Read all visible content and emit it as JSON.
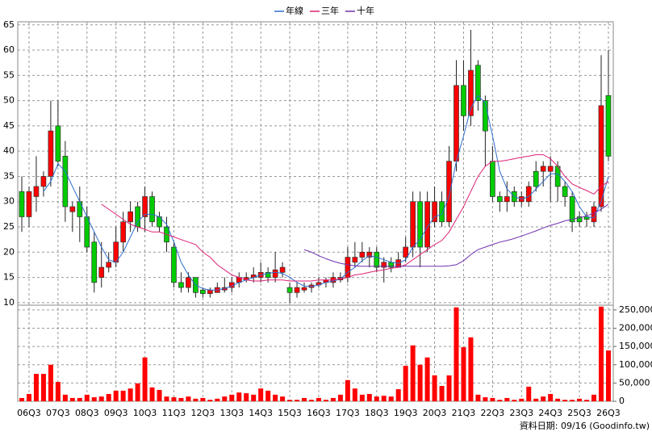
{
  "chart_data": {
    "type": "candlestick",
    "legend": "top",
    "grid": true,
    "categories": [
      null,
      "06Q3",
      null,
      null,
      null,
      "07Q3",
      null,
      null,
      null,
      "08Q3",
      null,
      null,
      null,
      "09Q3",
      null,
      null,
      null,
      "10Q3",
      null,
      null,
      null,
      "11Q3",
      null,
      null,
      null,
      "12Q3",
      null,
      null,
      null,
      "13Q3",
      null,
      null,
      null,
      "14Q3",
      null,
      null,
      null,
      "15Q3",
      null,
      null,
      null,
      "16Q3",
      null,
      null,
      null,
      "17Q3",
      null,
      null,
      null,
      "18Q3",
      null,
      null,
      null,
      "19Q3",
      null,
      null,
      null,
      "20Q3",
      null,
      null,
      null,
      "21Q3",
      null,
      null,
      null,
      "22Q3",
      null,
      null,
      null,
      "23Q3",
      null,
      null,
      null,
      "24Q3",
      null,
      null,
      null,
      "25Q3",
      null,
      null,
      null,
      "26Q3"
    ],
    "open": [
      32,
      27,
      31,
      33,
      35,
      45,
      39,
      28,
      30,
      27,
      22,
      15,
      17,
      18,
      22,
      26,
      29,
      27,
      31,
      27,
      25,
      21,
      14,
      13,
      15,
      12.5,
      11.8,
      12,
      12.5,
      13,
      14,
      14.5,
      15,
      15,
      16,
      15,
      16,
      13,
      12,
      12.5,
      13,
      13.5,
      14,
      14,
      14.5,
      15,
      18,
      19,
      19,
      20,
      17,
      18,
      17,
      19,
      21,
      30,
      21,
      26,
      30,
      26,
      38,
      53,
      47,
      57,
      50,
      38,
      31,
      30,
      32,
      30,
      30,
      36,
      36,
      36,
      37,
      33,
      31,
      27,
      27,
      26,
      29,
      51
    ],
    "high": [
      35,
      33,
      39,
      36,
      50,
      50,
      42,
      30,
      33,
      29,
      24,
      22,
      20,
      25,
      28,
      30,
      30,
      33,
      32,
      28,
      27,
      22,
      16,
      16,
      15,
      13,
      13,
      14,
      15,
      15,
      16,
      16,
      17,
      18,
      17,
      20,
      18,
      14,
      14,
      14,
      14,
      15,
      15,
      16,
      16,
      21,
      22,
      22,
      21,
      21,
      19,
      19,
      20,
      23,
      32,
      32,
      32,
      33,
      32,
      41,
      58,
      58,
      64,
      58,
      51,
      41,
      32,
      34,
      33,
      32,
      34,
      38,
      38,
      39,
      38,
      34,
      32,
      28,
      28,
      30,
      59,
      60
    ],
    "low": [
      24,
      25,
      28,
      31,
      33,
      37,
      26,
      24,
      22,
      20,
      12,
      13,
      16,
      17,
      20,
      24,
      24,
      24,
      25,
      24,
      20,
      13,
      12,
      12,
      11,
      11,
      11,
      12,
      12,
      12,
      13,
      14,
      14,
      14,
      14,
      14,
      15,
      10,
      11,
      12,
      12,
      13,
      13,
      13,
      14,
      14,
      17,
      18,
      17,
      16,
      14,
      16,
      17,
      18,
      19,
      17,
      20,
      25,
      25,
      25,
      36,
      44,
      45,
      48,
      37,
      30,
      28,
      28,
      29,
      29,
      29,
      32,
      33,
      30,
      30,
      29,
      24,
      25,
      25,
      25,
      28,
      38
    ],
    "close": [
      27,
      32,
      33,
      35,
      44,
      38,
      29,
      29,
      27,
      21,
      14,
      17,
      18,
      22,
      26,
      28,
      25,
      31,
      26,
      25,
      22,
      14,
      13,
      15,
      12,
      11.8,
      12.5,
      13,
      13,
      14,
      15,
      15,
      15.5,
      16,
      15,
      16.5,
      17,
      12,
      13,
      13,
      13.5,
      14,
      14.5,
      15,
      15,
      19,
      19,
      20,
      20,
      17,
      18,
      17,
      18.5,
      21,
      30,
      21,
      30,
      30,
      26,
      38,
      53,
      47,
      56,
      50,
      44,
      31,
      30,
      31,
      30,
      31,
      33,
      33,
      37,
      37,
      33,
      31,
      26,
      26,
      26.5,
      29,
      49,
      39
    ],
    "up_color": "#ff0000",
    "down_color": "#00cc00",
    "ylim": [
      9.5,
      65.6
    ],
    "yticks": [
      10,
      15,
      20,
      25,
      30,
      35,
      40,
      45,
      50,
      55,
      60,
      65
    ],
    "series": [
      {
        "name": "年線",
        "color": "#2f6fd0",
        "values": [
          null,
          null,
          null,
          32,
          34,
          37.5,
          36,
          33,
          30,
          27,
          24,
          21,
          18.5,
          18,
          20,
          23,
          26,
          27.5,
          27.5,
          27,
          25.5,
          22,
          18,
          15.5,
          13.5,
          12.8,
          12.5,
          12.5,
          12.8,
          13.3,
          14,
          14.5,
          15,
          15.5,
          15.8,
          16,
          15.8,
          15,
          14,
          13.3,
          13.2,
          13.5,
          14,
          14.3,
          14.7,
          16,
          17,
          18.3,
          19.3,
          19,
          18.5,
          18,
          17.8,
          18.5,
          21,
          22.5,
          25,
          27,
          27.5,
          31,
          38,
          43,
          48.5,
          51,
          49.5,
          43,
          36,
          32.5,
          31,
          30.5,
          31,
          32.5,
          34,
          35.5,
          35.5,
          34,
          32,
          29,
          27,
          26.8,
          30,
          35
        ]
      },
      {
        "name": "三年",
        "color": "#dd2277",
        "values": [
          null,
          null,
          null,
          null,
          null,
          null,
          null,
          null,
          null,
          null,
          null,
          29.5,
          28.5,
          27.5,
          26.5,
          25.5,
          25,
          24.5,
          24,
          24,
          23.5,
          23,
          22.5,
          22,
          21.5,
          20,
          19,
          17.5,
          16.5,
          15.5,
          15,
          14.5,
          14.3,
          14.3,
          14.5,
          14.5,
          14.5,
          14.3,
          14.3,
          14.3,
          14.3,
          14.5,
          14.5,
          14.5,
          14.7,
          15,
          15.5,
          15.7,
          16,
          16.3,
          16.5,
          16.8,
          17,
          17.5,
          18.5,
          19.5,
          20.5,
          21.5,
          22.3,
          24,
          26.5,
          29,
          32,
          35,
          37,
          38,
          38,
          38.2,
          38.5,
          38.8,
          39,
          39.3,
          39.3,
          38.5,
          37,
          35,
          33.5,
          32.8,
          32.2,
          31.5,
          33,
          34
        ]
      },
      {
        "name": "十年",
        "color": "#7030b0",
        "values": [
          null,
          null,
          null,
          null,
          null,
          null,
          null,
          null,
          null,
          null,
          null,
          null,
          null,
          null,
          null,
          null,
          null,
          null,
          null,
          null,
          null,
          null,
          null,
          null,
          null,
          null,
          null,
          null,
          null,
          null,
          null,
          null,
          null,
          null,
          null,
          null,
          null,
          null,
          null,
          20.5,
          20,
          19.3,
          18.7,
          18.2,
          17.8,
          17.5,
          17.3,
          17.2,
          17.2,
          17.2,
          17.2,
          17.2,
          17.2,
          17.2,
          17.2,
          17.2,
          17.2,
          17.2,
          17.2,
          17.3,
          17.5,
          18.3,
          19.5,
          20.5,
          21,
          21.5,
          22,
          22.3,
          22.7,
          23.2,
          23.7,
          24.2,
          24.8,
          25.3,
          25.7,
          26.2,
          26.5,
          26.8,
          27.2,
          27.7,
          28.5,
          29.5
        ]
      }
    ],
    "volume": {
      "color": "#ff0000",
      "values": [
        9000,
        20000,
        75000,
        75000,
        100000,
        53000,
        18000,
        9000,
        9000,
        18000,
        11000,
        13000,
        20000,
        29000,
        29000,
        35000,
        49000,
        120000,
        38000,
        31000,
        13000,
        11000,
        9000,
        13000,
        7000,
        9000,
        4000,
        7000,
        13000,
        18000,
        24000,
        22000,
        18000,
        35000,
        29000,
        18000,
        13000,
        4000,
        4000,
        9000,
        4000,
        9000,
        4000,
        9000,
        18000,
        58000,
        35000,
        18000,
        20000,
        13000,
        15000,
        13000,
        33000,
        97000,
        153000,
        100000,
        120000,
        71000,
        42000,
        71000,
        257000,
        148000,
        175000,
        18000,
        11000,
        9000,
        4000,
        9000,
        4000,
        7000,
        40000,
        7000,
        13000,
        20000,
        7000,
        4000,
        4000,
        7000,
        4000,
        18000,
        259000,
        139000
      ],
      "ylim": [
        0,
        263000
      ],
      "yticks": [
        0,
        {
          "value": 50000,
          "label": "50,000"
        },
        {
          "value": 100000,
          "label": "100,000"
        },
        {
          "value": 150000,
          "label": "150,000"
        },
        {
          "value": 200000,
          "label": "200,000"
        },
        {
          "value": 250000,
          "label": "250,000"
        }
      ]
    }
  },
  "footer": "資料日期: 09/16 (Goodinfo.tw)"
}
